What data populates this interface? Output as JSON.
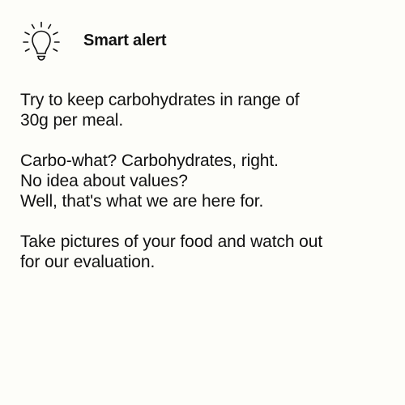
{
  "alert": {
    "icon": "lightbulb-icon",
    "title": "Smart alert",
    "paragraphs": [
      {
        "lines": [
          "Try to keep carbohydrates in range of",
          "30g per meal."
        ]
      },
      {
        "lines": [
          "Carbo-what? Carbohydrates, right.",
          "No idea about values?",
          "Well, that's what we are here for."
        ]
      },
      {
        "lines": [
          "Take pictures of your food and watch out",
          "for our evaluation."
        ]
      }
    ]
  }
}
